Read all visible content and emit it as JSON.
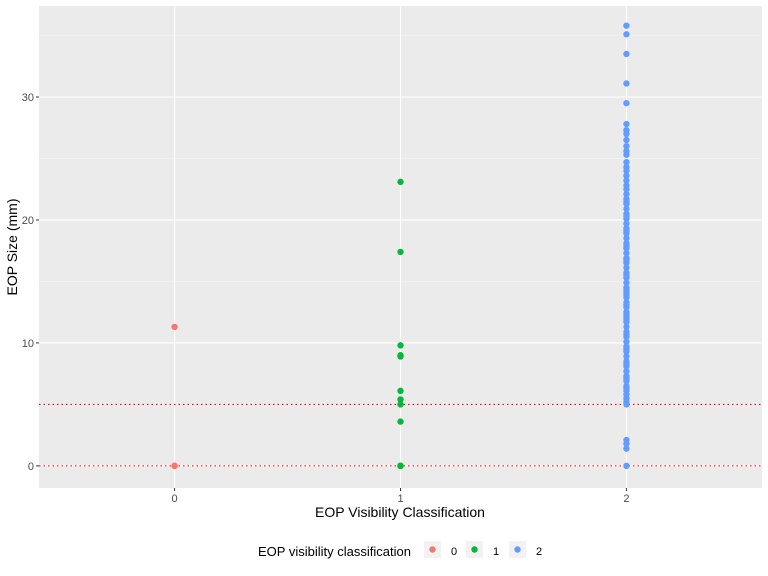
{
  "chart_data": {
    "type": "scatter",
    "title": "",
    "xlabel": "EOP Visibility Classification",
    "ylabel": "EOP Size (mm)",
    "x_ticks": [
      "0",
      "1",
      "2"
    ],
    "y_ticks": [
      0,
      10,
      20,
      30
    ],
    "xlim": [
      -0.6,
      2.6
    ],
    "ylim": [
      -1.8,
      37.4
    ],
    "grid": true,
    "reference_lines": [
      {
        "y": 0,
        "style": "dotted",
        "color": "#ff0000"
      },
      {
        "y": 5,
        "style": "dotted",
        "color": "#ff0000"
      }
    ],
    "legend": {
      "title": "EOP visibility classification",
      "position": "bottom",
      "entries": [
        "0",
        "1",
        "2"
      ]
    },
    "series": [
      {
        "name": "0",
        "color": "#f8766d",
        "x": [
          0,
          0,
          0,
          0
        ],
        "y": [
          11.3,
          0,
          0,
          0
        ]
      },
      {
        "name": "1",
        "color": "#00ba38",
        "x": [
          1,
          1,
          1,
          1,
          1,
          1,
          1,
          1,
          1,
          1,
          1,
          1,
          1
        ],
        "y": [
          23.1,
          17.4,
          9.8,
          9.0,
          8.9,
          6.1,
          5.4,
          5.0,
          3.6,
          0,
          0,
          0,
          0
        ]
      },
      {
        "name": "2",
        "color": "#619cff",
        "x": [
          2,
          2,
          2,
          2,
          2,
          2,
          2,
          2,
          2,
          2,
          2,
          2,
          2,
          2,
          2,
          2,
          2,
          2,
          2,
          2,
          2,
          2,
          2,
          2,
          2,
          2,
          2,
          2,
          2,
          2,
          2,
          2,
          2,
          2,
          2,
          2,
          2,
          2,
          2,
          2,
          2,
          2,
          2,
          2,
          2,
          2,
          2,
          2,
          2,
          2,
          2,
          2,
          2,
          2,
          2,
          2,
          2,
          2,
          2,
          2,
          2,
          2,
          2,
          2,
          2,
          2,
          2,
          2,
          2,
          2,
          2,
          2,
          2,
          2,
          2,
          2,
          2,
          2,
          2,
          2,
          2,
          2,
          2,
          2
        ],
        "y": [
          35.8,
          35.1,
          33.5,
          31.1,
          29.5,
          27.8,
          27.3,
          27.0,
          26.5,
          26.0,
          25.6,
          25.3,
          24.7,
          24.3,
          24.0,
          23.6,
          23.2,
          22.8,
          22.5,
          22.1,
          21.7,
          21.3,
          20.9,
          20.5,
          20.1,
          19.7,
          19.3,
          18.9,
          18.5,
          18.1,
          17.7,
          17.3,
          16.9,
          16.5,
          16.1,
          15.7,
          15.3,
          14.9,
          14.5,
          14.1,
          13.7,
          13.3,
          12.9,
          12.5,
          12.1,
          11.7,
          11.3,
          10.9,
          10.5,
          10.1,
          9.7,
          9.3,
          8.9,
          8.5,
          8.1,
          7.7,
          7.3,
          6.9,
          6.5,
          6.1,
          5.8,
          5.5,
          5.2,
          5.0,
          2.1,
          1.8,
          1.4,
          0,
          12.3,
          13.1,
          14.3,
          15.5,
          16.7,
          17.9,
          19.1,
          20.3,
          21.5,
          6.3,
          7.1,
          8.3,
          9.5,
          10.7,
          11.9,
          13.9
        ]
      }
    ]
  }
}
